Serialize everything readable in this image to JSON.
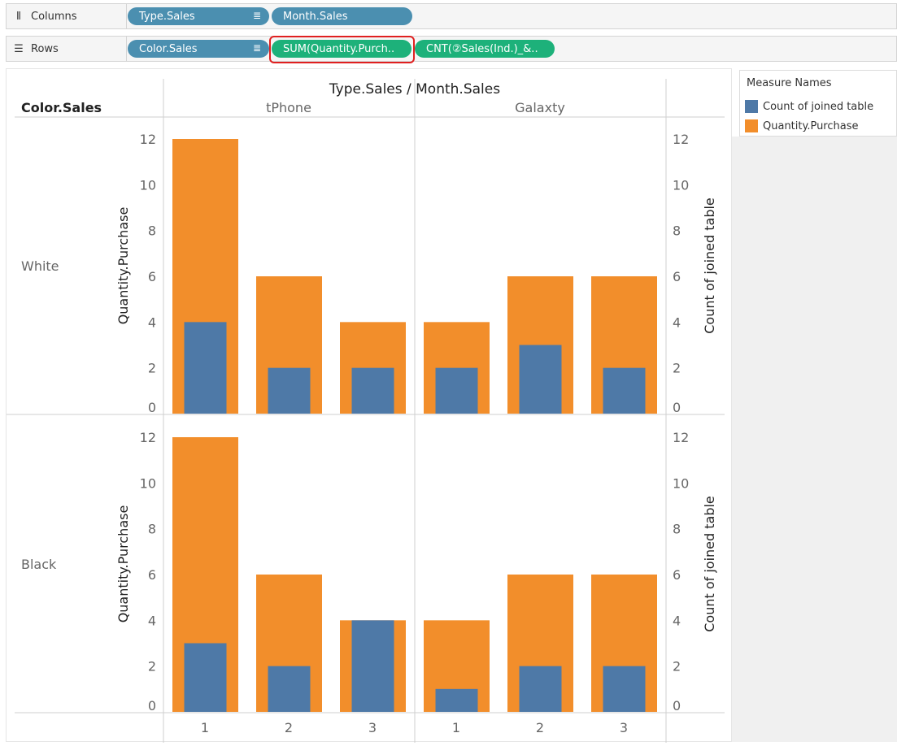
{
  "shelves": {
    "columns": {
      "label": "Columns",
      "icon": "columns-icon",
      "pills": [
        {
          "text": "Type.Sales",
          "color": "blue",
          "sorted": true
        },
        {
          "text": "Month.Sales",
          "color": "blue",
          "sorted": false
        }
      ]
    },
    "rows": {
      "label": "Rows",
      "icon": "rows-icon",
      "pills": [
        {
          "text": "Color.Sales",
          "color": "blue",
          "sorted": true
        },
        {
          "text": "SUM(Quantity.Purch..",
          "color": "green",
          "sorted": false,
          "highlighted": true
        },
        {
          "text": "CNT(②Sales(Ind.)_&..",
          "color": "green",
          "sorted": false
        }
      ]
    }
  },
  "view": {
    "header_title": "Type.Sales / Month.Sales",
    "row_header_title": "Color.Sales",
    "types": [
      "tPhone",
      "Galaxty"
    ],
    "colors": [
      "White",
      "Black"
    ],
    "months": [
      "1",
      "2",
      "3"
    ],
    "left_axis_label": "Quantity.Purchase",
    "right_axis_label": "Count of joined table",
    "axis_ticks": [
      "0",
      "2",
      "4",
      "6",
      "8",
      "10",
      "12"
    ]
  },
  "legend": {
    "title": "Measure Names",
    "items": [
      {
        "label": "Count of joined table",
        "color": "#4e79a7"
      },
      {
        "label": "Quantity.Purchase",
        "color": "#f28e2b"
      }
    ]
  },
  "chart_data": {
    "type": "bar",
    "title": "Type.Sales / Month.Sales",
    "ylabel": "Quantity.Purchase",
    "ylabel_right": "Count of joined table",
    "ylim": [
      0,
      12
    ],
    "panes": [
      {
        "color": "White",
        "type": "tPhone",
        "categories": [
          "1",
          "2",
          "3"
        ],
        "series": [
          {
            "name": "Quantity.Purchase",
            "values": [
              12,
              6,
              4
            ]
          },
          {
            "name": "Count of joined table",
            "values": [
              4,
              2,
              2
            ]
          }
        ]
      },
      {
        "color": "White",
        "type": "Galaxty",
        "categories": [
          "1",
          "2",
          "3"
        ],
        "series": [
          {
            "name": "Quantity.Purchase",
            "values": [
              4,
              6,
              6
            ]
          },
          {
            "name": "Count of joined table",
            "values": [
              2,
              3,
              2
            ]
          }
        ]
      },
      {
        "color": "Black",
        "type": "tPhone",
        "categories": [
          "1",
          "2",
          "3"
        ],
        "series": [
          {
            "name": "Quantity.Purchase",
            "values": [
              12,
              6,
              4
            ]
          },
          {
            "name": "Count of joined table",
            "values": [
              3,
              2,
              4
            ]
          }
        ]
      },
      {
        "color": "Black",
        "type": "Galaxty",
        "categories": [
          "1",
          "2",
          "3"
        ],
        "series": [
          {
            "name": "Quantity.Purchase",
            "values": [
              4,
              6,
              6
            ]
          },
          {
            "name": "Count of joined table",
            "values": [
              1,
              2,
              2
            ]
          }
        ]
      }
    ]
  }
}
